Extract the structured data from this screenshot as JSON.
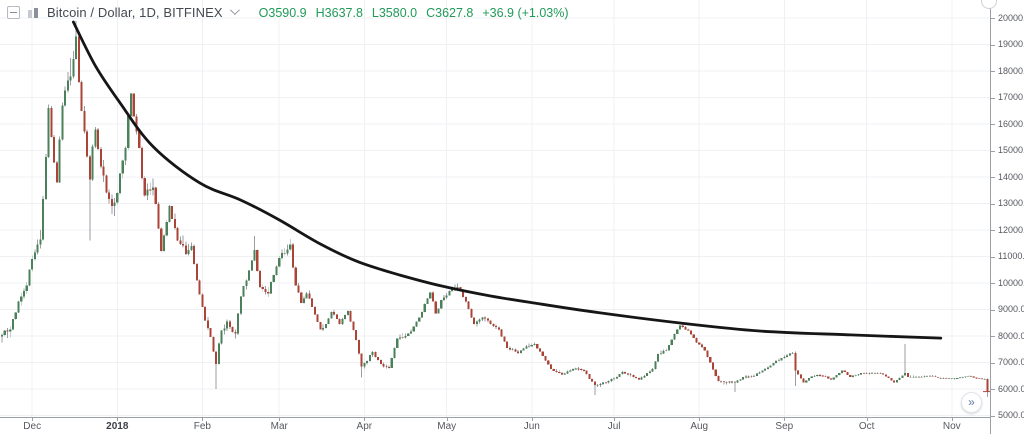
{
  "header": {
    "symbol_title": "Bitcoin / Dollar, 1D, BITFINEX",
    "ohlc": {
      "open": "O3590.9",
      "high": "H3637.8",
      "low": "L3580.0",
      "close": "C3627.8",
      "change": "+36.9 (+1.03%)"
    }
  },
  "buttons": {
    "scroll_to_end": "»"
  },
  "colors": {
    "up_candle": "#4a815a",
    "down_candle": "#ab4337",
    "wick": "#9b9ea2",
    "grid": "#eef0f3",
    "axis_line": "#9aa0a6",
    "axis_text": "#55585e",
    "ohlc_text": "#209a58",
    "trendline": "#161616",
    "last_price_mark": "#b3453c"
  },
  "chart_data": {
    "type": "candlestick",
    "title": "Bitcoin / Dollar",
    "interval": "1D",
    "exchange": "BITFINEX",
    "legend_ohlc": {
      "open": 3590.9,
      "high": 3637.8,
      "low": 3580.0,
      "close": 3627.8,
      "change": 36.9,
      "change_pct": 1.03
    },
    "y_axis": {
      "side": "right",
      "tick_values": [
        20000,
        19000,
        18000,
        17000,
        16000,
        15000,
        14000,
        13000,
        12000,
        11000,
        10000,
        9000,
        8000,
        7000,
        6000,
        5000
      ],
      "tick_format_suffix": ".0",
      "visible_range": [
        4700,
        20650
      ],
      "grid": true
    },
    "x_axis": {
      "labels": [
        {
          "label": "Dec",
          "day": 11
        },
        {
          "label": "2018",
          "day": 42,
          "bold": true
        },
        {
          "label": "Feb",
          "day": 73
        },
        {
          "label": "Mar",
          "day": 101
        },
        {
          "label": "Apr",
          "day": 132
        },
        {
          "label": "May",
          "day": 162
        },
        {
          "label": "Jun",
          "day": 193
        },
        {
          "label": "Jul",
          "day": 223
        },
        {
          "label": "Aug",
          "day": 254
        },
        {
          "label": "Sep",
          "day": 285
        },
        {
          "label": "Oct",
          "day": 315
        },
        {
          "label": "Nov",
          "day": 346
        }
      ],
      "grid": true
    },
    "days_total": 360,
    "close_anchors_day_close_volpct": [
      [
        0,
        8030,
        5
      ],
      [
        3,
        8250,
        5
      ],
      [
        6,
        9300,
        5
      ],
      [
        9,
        9900,
        6
      ],
      [
        11,
        10900,
        6
      ],
      [
        14,
        11650,
        6
      ],
      [
        17,
        16600,
        7
      ],
      [
        20,
        13800,
        7
      ],
      [
        22,
        16700,
        6
      ],
      [
        25,
        17800,
        6
      ],
      [
        27,
        19300,
        6
      ],
      [
        29,
        16500,
        7
      ],
      [
        32,
        13900,
        8
      ],
      [
        34,
        15800,
        6
      ],
      [
        36,
        14400,
        6
      ],
      [
        40,
        12900,
        6
      ],
      [
        42,
        13400,
        5
      ],
      [
        45,
        15100,
        5
      ],
      [
        47,
        17150,
        5
      ],
      [
        50,
        15100,
        6
      ],
      [
        52,
        13300,
        6
      ],
      [
        55,
        13600,
        5
      ],
      [
        58,
        11200,
        6
      ],
      [
        61,
        12900,
        5
      ],
      [
        64,
        11600,
        5
      ],
      [
        67,
        11100,
        4.5
      ],
      [
        69,
        11400,
        4.5
      ],
      [
        71,
        10100,
        5
      ],
      [
        73,
        9100,
        6
      ],
      [
        75,
        8300,
        6
      ],
      [
        78,
        6950,
        7
      ],
      [
        80,
        8200,
        6
      ],
      [
        82,
        8550,
        5
      ],
      [
        85,
        8100,
        4.5
      ],
      [
        87,
        9500,
        4.5
      ],
      [
        89,
        10100,
        4
      ],
      [
        92,
        11250,
        4
      ],
      [
        94,
        9850,
        4.5
      ],
      [
        97,
        9600,
        4
      ],
      [
        99,
        10300,
        4
      ],
      [
        101,
        10950,
        4
      ],
      [
        105,
        11450,
        4
      ],
      [
        107,
        9900,
        4.5
      ],
      [
        109,
        9250,
        4
      ],
      [
        111,
        9600,
        3.5
      ],
      [
        113,
        9100,
        3.5
      ],
      [
        116,
        8250,
        3.5
      ],
      [
        118,
        8450,
        3
      ],
      [
        120,
        8900,
        3
      ],
      [
        123,
        8450,
        3
      ],
      [
        126,
        8950,
        3
      ],
      [
        129,
        7850,
        4
      ],
      [
        131,
        6850,
        4
      ],
      [
        133,
        7050,
        3.5
      ],
      [
        135,
        7400,
        3
      ],
      [
        138,
        6950,
        3
      ],
      [
        141,
        6800,
        2.5
      ],
      [
        144,
        7900,
        3.5
      ],
      [
        147,
        8000,
        2.5
      ],
      [
        150,
        8350,
        2.5
      ],
      [
        153,
        8900,
        2.5
      ],
      [
        156,
        9650,
        3
      ],
      [
        158,
        8850,
        3
      ],
      [
        160,
        9350,
        2.5
      ],
      [
        163,
        9700,
        2.5
      ],
      [
        166,
        9850,
        2.5
      ],
      [
        169,
        9300,
        2.5
      ],
      [
        172,
        8450,
        3
      ],
      [
        175,
        8700,
        2.5
      ],
      [
        178,
        8450,
        2
      ],
      [
        181,
        8250,
        2
      ],
      [
        184,
        7550,
        2.5
      ],
      [
        188,
        7350,
        2
      ],
      [
        191,
        7600,
        2
      ],
      [
        194,
        7700,
        2
      ],
      [
        200,
        6750,
        2.5
      ],
      [
        204,
        6550,
        2
      ],
      [
        208,
        6750,
        2
      ],
      [
        212,
        6700,
        2
      ],
      [
        216,
        6150,
        2.5
      ],
      [
        220,
        6250,
        2
      ],
      [
        223,
        6400,
        2
      ],
      [
        226,
        6650,
        2
      ],
      [
        232,
        6350,
        2
      ],
      [
        237,
        6750,
        2
      ],
      [
        239,
        7320,
        2.5
      ],
      [
        242,
        7450,
        2
      ],
      [
        246,
        8250,
        2.5
      ],
      [
        247,
        8400,
        2
      ],
      [
        250,
        8200,
        2
      ],
      [
        253,
        7750,
        2
      ],
      [
        256,
        7450,
        2.5
      ],
      [
        258,
        7000,
        2.5
      ],
      [
        261,
        6300,
        2.5
      ],
      [
        264,
        6250,
        2
      ],
      [
        267,
        6250,
        2
      ],
      [
        270,
        6450,
        2
      ],
      [
        274,
        6500,
        1.8
      ],
      [
        278,
        6750,
        1.8
      ],
      [
        282,
        7050,
        1.8
      ],
      [
        285,
        7200,
        1.8
      ],
      [
        288,
        7360,
        1.8
      ],
      [
        289,
        6700,
        3
      ],
      [
        292,
        6250,
        2
      ],
      [
        295,
        6480,
        1.6
      ],
      [
        299,
        6500,
        1.4
      ],
      [
        302,
        6350,
        1.4
      ],
      [
        306,
        6700,
        1.4
      ],
      [
        309,
        6450,
        1.4
      ],
      [
        313,
        6600,
        1.2
      ],
      [
        317,
        6600,
        1.1
      ],
      [
        321,
        6550,
        1.1
      ],
      [
        325,
        6250,
        1.2
      ],
      [
        329,
        6600,
        1.4
      ],
      [
        330,
        6450,
        1.2
      ],
      [
        334,
        6450,
        1
      ],
      [
        338,
        6500,
        1
      ],
      [
        342,
        6400,
        1
      ],
      [
        346,
        6400,
        1
      ],
      [
        350,
        6450,
        1
      ],
      [
        352,
        6500,
        1
      ],
      [
        355,
        6400,
        1
      ],
      [
        358,
        6380,
        1
      ],
      [
        359,
        5900,
        9
      ]
    ],
    "wick_spikes": [
      {
        "day": 27,
        "high": 19891
      },
      {
        "day": 32,
        "low": 11600
      },
      {
        "day": 78,
        "low": 6000
      },
      {
        "day": 92,
        "high": 11780
      },
      {
        "day": 131,
        "low": 6430
      },
      {
        "day": 166,
        "high": 9990
      },
      {
        "day": 216,
        "low": 5780
      },
      {
        "day": 267,
        "low": 5880
      },
      {
        "day": 289,
        "low": 6120
      },
      {
        "day": 329,
        "high": 7700
      },
      {
        "day": 359,
        "low": 5700
      }
    ],
    "last_close_approx": 5900,
    "trendline": {
      "shape": "decaying curve drawn from the December 2017 top, acting as resistance",
      "points_day_price": [
        [
          26,
          19850
        ],
        [
          34,
          18200
        ],
        [
          43,
          16800
        ],
        [
          55,
          15150
        ],
        [
          72,
          13780
        ],
        [
          87,
          13130
        ],
        [
          101,
          12380
        ],
        [
          116,
          11470
        ],
        [
          130,
          10790
        ],
        [
          145,
          10300
        ],
        [
          160,
          9890
        ],
        [
          178,
          9510
        ],
        [
          196,
          9210
        ],
        [
          218,
          8870
        ],
        [
          247,
          8490
        ],
        [
          276,
          8190
        ],
        [
          309,
          8040
        ],
        [
          342,
          7920
        ]
      ]
    }
  }
}
